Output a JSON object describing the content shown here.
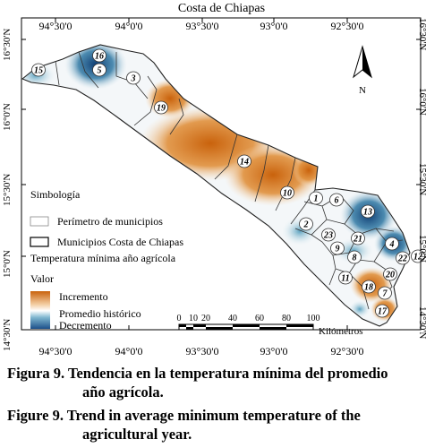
{
  "title": "Costa de Chiapas",
  "lon_ticks": [
    "94°30'0",
    "94°0'0",
    "93°30'0",
    "93°0'0",
    "92°30'0"
  ],
  "lat_ticks": [
    "16°30'N",
    "16°0'N",
    "15°30'N",
    "15°0'N",
    "14°30'N"
  ],
  "north_label": "N",
  "legend": {
    "heading": "Simbología",
    "perimeter": "Perímetro de municipios",
    "municipios": "Municipios Costa de Chiapas",
    "variable": "Temperatura mínima año agrícola",
    "valor": "Valor",
    "increase": "Incremento",
    "historic": "Promedio histórico",
    "decrease": "Decremento"
  },
  "scale": {
    "ticks": [
      "0",
      "10",
      "20",
      "40",
      "60",
      "80",
      "100"
    ],
    "unit": "Kilómetros"
  },
  "municipios": [
    "1",
    "2",
    "3",
    "4",
    "5",
    "6",
    "7",
    "8",
    "9",
    "10",
    "11",
    "12",
    "13",
    "14",
    "15",
    "16",
    "17",
    "18",
    "19",
    "20",
    "21",
    "22",
    "23"
  ],
  "colors": {
    "increase": "#d97a1c",
    "historic": "#ffffff",
    "decrease": "#1b4f8a"
  },
  "caption_es": [
    "Figura 9. Tendencia en la temperatura mínima del promedio",
    "año agrícola."
  ],
  "caption_en": [
    "Figure 9. Trend in average minimum temperature of the",
    "agricultural year."
  ]
}
